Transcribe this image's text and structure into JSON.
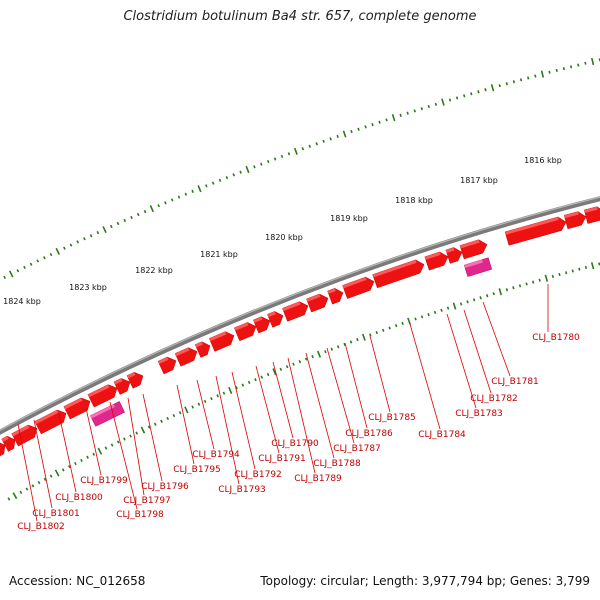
{
  "title": "Clostridium botulinum Ba4 str. 657, complete genome",
  "accession": "Accession: NC_012658",
  "topology": "Topology: circular; Length: 3,977,794 bp; Genes: 3,799",
  "colors": {
    "gene": "#ee1111",
    "gene_top": "#ff6060",
    "rna": "#e0288c",
    "rna_top": "#ff77bb",
    "label_line": "#dd0000",
    "label_text": "#c00000",
    "ruler": "#2a7a1a",
    "backbone": "#7a7a7a"
  },
  "kbp_labels": [
    "1816 kbp",
    "1817 kbp",
    "1818 kbp",
    "1819 kbp",
    "1820 kbp",
    "1821 kbp",
    "1822 kbp",
    "1823 kbp",
    "1824 kbp"
  ],
  "gene_labels": [
    "CLJ_B1780",
    "CLJ_B1781",
    "CLJ_B1782",
    "CLJ_B1783",
    "CLJ_B1784",
    "CLJ_B1785",
    "CLJ_B1786",
    "CLJ_B1787",
    "CLJ_B1788",
    "CLJ_B1789",
    "CLJ_B1790",
    "CLJ_B1791",
    "CLJ_B1792",
    "CLJ_B1793",
    "CLJ_B1794",
    "CLJ_B1795",
    "CLJ_B1796",
    "CLJ_B1797",
    "CLJ_B1798",
    "CLJ_B1799",
    "CLJ_B1800",
    "CLJ_B1801",
    "CLJ_B1802"
  ]
}
